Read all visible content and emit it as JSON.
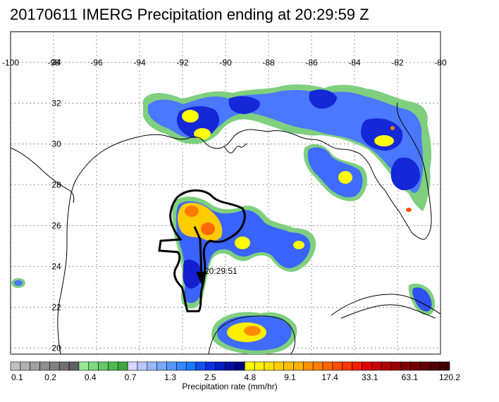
{
  "title": "20170611 IMERG Precipitation ending at 20:29:59 Z",
  "map": {
    "lon_range": [
      -100,
      -80
    ],
    "lat_range": [
      19.7,
      35.5
    ],
    "lon_ticks": [
      "-100",
      "-98",
      "-96",
      "-94",
      "-92",
      "-90",
      "-88",
      "-86",
      "-84",
      "-82",
      "-80"
    ],
    "lat_ticks": [
      "34",
      "32",
      "30",
      "28",
      "26",
      "24",
      "22",
      "20"
    ],
    "gridlines": true,
    "track_label": "20:29:51"
  },
  "colorbar": {
    "title": "Precipitation rate (mm/hr)",
    "labels": [
      "0.1",
      "0.2",
      "0.4",
      "0.7",
      "1.3",
      "2.5",
      "4.8",
      "9.1",
      "17.4",
      "33.1",
      "63.1",
      "120.2"
    ],
    "colors": [
      "#c0c0c0",
      "#b0b0b0",
      "#a0a0a0",
      "#909090",
      "#808080",
      "#707070",
      "#606060",
      "#98e898",
      "#80d880",
      "#68c868",
      "#50b850",
      "#40a840",
      "#d8d8ff",
      "#b8c8ff",
      "#98b8ff",
      "#78a8ff",
      "#5898ff",
      "#3888ff",
      "#1878ff",
      "#1450f0",
      "#0a30e0",
      "#0020c0",
      "#0010a0",
      "#000080",
      "#ffff00",
      "#fff000",
      "#ffe000",
      "#ffd000",
      "#ffc000",
      "#ffb000",
      "#ff9000",
      "#ff8000",
      "#ff6800",
      "#ff5000",
      "#ff3800",
      "#f02000",
      "#e00000",
      "#c80000",
      "#b00000",
      "#980000",
      "#800000",
      "#700000",
      "#600000",
      "#500000",
      "#400000"
    ]
  }
}
